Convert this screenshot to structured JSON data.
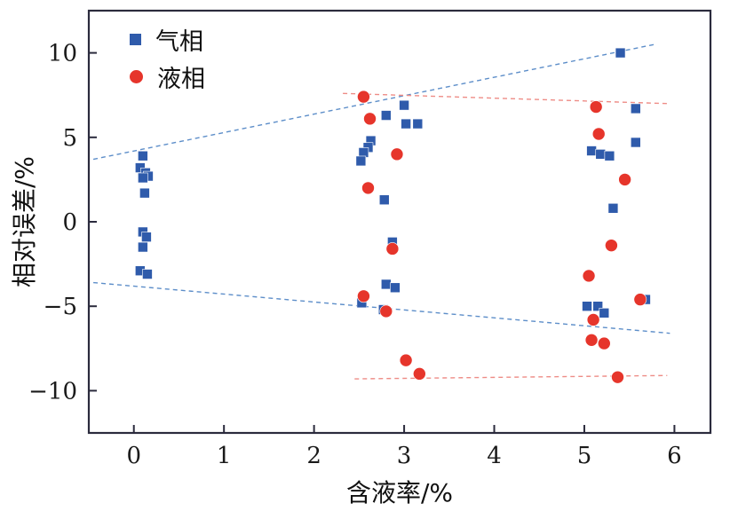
{
  "figure": {
    "xlabel": "含液率/%",
    "ylabel": "相对误差/%"
  },
  "colors": {
    "gas_marker": "#2f5bab",
    "liquid_marker": "#e6352b",
    "gas_trend_line": "#5d8ec9",
    "liquid_trend_line": "#ee8c86",
    "axis_frame": "#2b2b3d",
    "text": "#1a1a1a"
  },
  "chart_data": {
    "type": "scatter",
    "title": "",
    "xlabel": "含液率/%",
    "ylabel": "相对误差/%",
    "xlim": [
      -0.5,
      6.4
    ],
    "ylim": [
      -12.5,
      12.5
    ],
    "xticks": [
      0,
      1,
      2,
      3,
      4,
      5,
      6
    ],
    "yticks": [
      -10,
      -5,
      0,
      5,
      10
    ],
    "grid": false,
    "legend_position": "top-left-inside",
    "series": [
      {
        "name": "气相",
        "marker": "square",
        "color": "#2f5bab",
        "points": [
          [
            0.1,
            3.9
          ],
          [
            0.07,
            3.2
          ],
          [
            0.13,
            2.9
          ],
          [
            0.16,
            2.7
          ],
          [
            0.1,
            2.6
          ],
          [
            0.12,
            1.7
          ],
          [
            0.1,
            -0.6
          ],
          [
            0.14,
            -0.9
          ],
          [
            0.1,
            -1.5
          ],
          [
            0.07,
            -2.9
          ],
          [
            0.15,
            -3.1
          ],
          [
            2.8,
            6.3
          ],
          [
            3.0,
            6.9
          ],
          [
            3.02,
            5.8
          ],
          [
            3.15,
            5.8
          ],
          [
            2.63,
            4.8
          ],
          [
            2.6,
            4.4
          ],
          [
            2.55,
            4.1
          ],
          [
            2.52,
            3.6
          ],
          [
            2.78,
            1.3
          ],
          [
            2.87,
            -1.2
          ],
          [
            2.8,
            -3.7
          ],
          [
            2.9,
            -3.9
          ],
          [
            2.53,
            -4.8
          ],
          [
            2.77,
            -5.2
          ],
          [
            5.4,
            10.0
          ],
          [
            5.57,
            6.7
          ],
          [
            5.57,
            4.7
          ],
          [
            5.08,
            4.2
          ],
          [
            5.18,
            4.0
          ],
          [
            5.28,
            3.9
          ],
          [
            5.32,
            0.8
          ],
          [
            5.03,
            -5.0
          ],
          [
            5.15,
            -5.0
          ],
          [
            5.22,
            -5.4
          ],
          [
            5.68,
            -4.6
          ]
        ]
      },
      {
        "name": "液相",
        "marker": "circle",
        "color": "#e6352b",
        "points": [
          [
            2.55,
            7.4
          ],
          [
            2.62,
            6.1
          ],
          [
            2.92,
            4.0
          ],
          [
            2.6,
            2.0
          ],
          [
            2.87,
            -1.6
          ],
          [
            2.55,
            -4.4
          ],
          [
            2.8,
            -5.3
          ],
          [
            3.02,
            -8.2
          ],
          [
            3.17,
            -9.0
          ],
          [
            5.13,
            6.8
          ],
          [
            5.16,
            5.2
          ],
          [
            5.45,
            2.5
          ],
          [
            5.3,
            -1.4
          ],
          [
            5.05,
            -3.2
          ],
          [
            5.1,
            -5.8
          ],
          [
            5.08,
            -7.0
          ],
          [
            5.22,
            -7.2
          ],
          [
            5.37,
            -9.2
          ],
          [
            5.62,
            -4.6
          ]
        ]
      }
    ],
    "trend_lines": [
      {
        "series": "气相",
        "color": "#5d8ec9",
        "style": "dashed",
        "from": [
          -0.45,
          3.7
        ],
        "to": [
          5.78,
          10.5
        ]
      },
      {
        "series": "气相",
        "color": "#5d8ec9",
        "style": "dashed",
        "from": [
          -0.45,
          -3.6
        ],
        "to": [
          5.95,
          -6.6
        ]
      },
      {
        "series": "液相",
        "color": "#ee8c86",
        "style": "dashed",
        "from": [
          2.32,
          7.6
        ],
        "to": [
          5.92,
          7.0
        ]
      },
      {
        "series": "液相",
        "color": "#ee8c86",
        "style": "dashed",
        "from": [
          2.45,
          -9.3
        ],
        "to": [
          5.92,
          -9.1
        ]
      }
    ]
  }
}
